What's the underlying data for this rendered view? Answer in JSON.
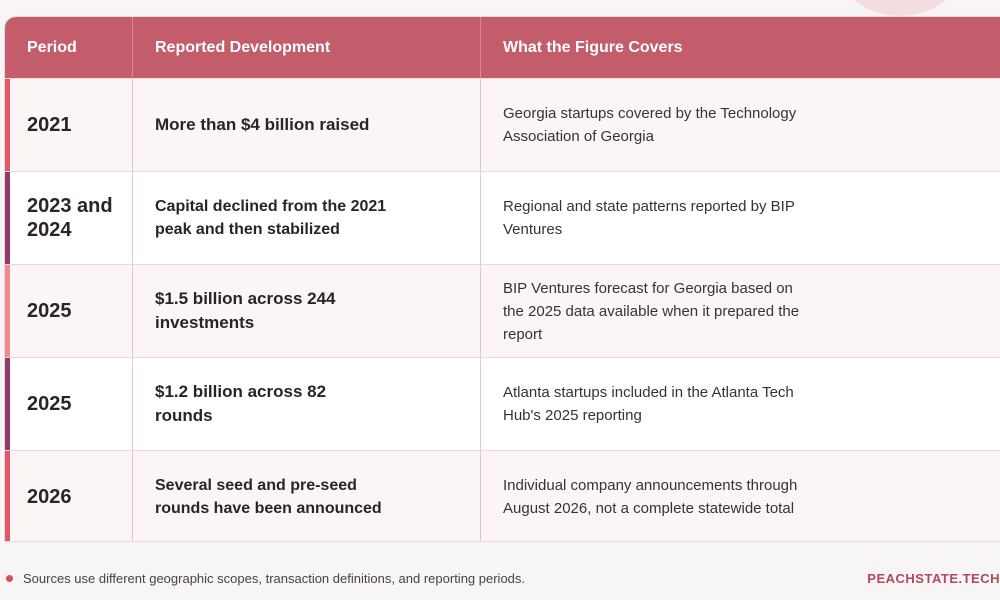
{
  "table": {
    "headers": {
      "period": "Period",
      "development": "Reported Development",
      "covers": "What the Figure Covers"
    },
    "rows": [
      {
        "period": "2021",
        "development": "More than $4 billion raised",
        "covers": "Georgia startups covered by the Technology Association of Georgia",
        "accent": "#e05863"
      },
      {
        "period": "2023 and 2024",
        "development": "Capital declined from the 2021 peak and then stabilized",
        "covers": "Regional and state patterns reported by BIP Ventures",
        "accent": "#8e3a6b"
      },
      {
        "period": "2025",
        "development": "$1.5 billion across 244 investments",
        "covers": "BIP Ventures forecast for Georgia based on the 2025 data available when it prepared the report",
        "accent": "#f08a8f"
      },
      {
        "period": "2025",
        "development": "$1.2 billion across 82 rounds",
        "covers": "Atlanta startups included in the Atlanta Tech Hub's 2025 reporting",
        "accent": "#8e3a6b"
      },
      {
        "period": "2026",
        "development": "Several seed and pre-seed rounds have been announced",
        "covers": "Individual company announcements through August 2026, not a complete statewide total",
        "accent": "#e05863"
      }
    ]
  },
  "footer": {
    "note": "Sources use different geographic scopes, transaction definitions, and reporting periods.",
    "brand": "PEACHSTATE.TECH"
  }
}
